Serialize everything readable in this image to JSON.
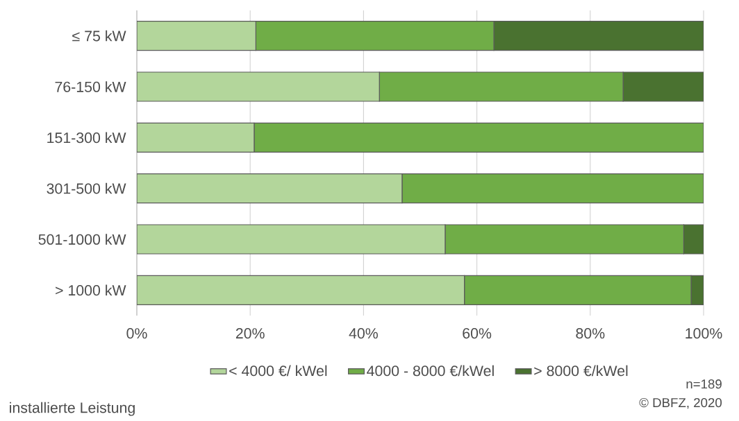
{
  "chart_data": {
    "type": "bar",
    "orientation": "horizontal",
    "stacked": true,
    "categories": [
      "≤ 75 kW",
      "76-150 kW",
      "151-300 kW",
      "301-500 kW",
      "501-1000 kW",
      "> 1000 kW"
    ],
    "series": [
      {
        "name": "< 4000 €/ kWel",
        "color": "#b3d69b",
        "values": [
          21.0,
          42.8,
          20.7,
          46.8,
          54.4,
          57.8
        ]
      },
      {
        "name": "4000 - 8000 €/kWel",
        "color": "#70ad47",
        "values": [
          42.0,
          43.0,
          79.3,
          53.2,
          42.1,
          40.0
        ]
      },
      {
        "name": "> 8000 €/kWel",
        "color": "#4a7230",
        "values": [
          37.0,
          14.2,
          0,
          0,
          3.5,
          2.2
        ]
      }
    ],
    "xlim": [
      0,
      100
    ],
    "xticks": [
      {
        "value": 0,
        "label": "0%"
      },
      {
        "value": 20,
        "label": "20%"
      },
      {
        "value": 40,
        "label": "40%"
      },
      {
        "value": 60,
        "label": "60%"
      },
      {
        "value": 80,
        "label": "80%"
      },
      {
        "value": 100,
        "label": "100%"
      }
    ],
    "grid": "x",
    "legend": "bottom",
    "ylabel": "installierte Leistung",
    "annotations": [
      "n=189",
      "© DBFZ, 2020"
    ]
  }
}
